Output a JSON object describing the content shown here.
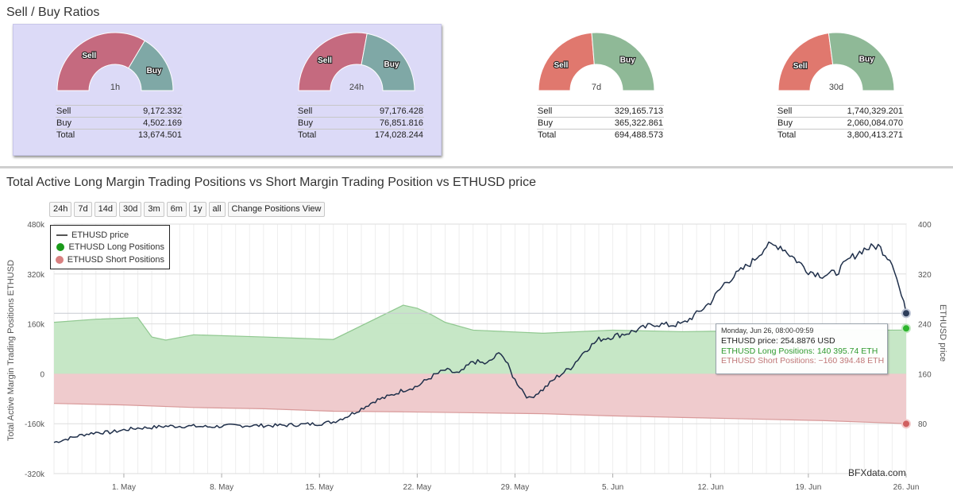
{
  "ratios": {
    "title": "Sell / Buy Ratios",
    "sell_label": "Sell",
    "buy_label": "Buy",
    "colors": {
      "sell_main": "#c56a7f",
      "buy_main": "#7fa8a6",
      "sell_alt": "#e0786e",
      "buy_alt": "#8fb997"
    },
    "gauges": [
      {
        "period": "1h",
        "sell_share": 0.671,
        "rows": [
          {
            "label": "Sell",
            "value": "9,172.332"
          },
          {
            "label": "Buy",
            "value": "4,502.169"
          },
          {
            "label": "Total",
            "value": "13,674.501"
          }
        ]
      },
      {
        "period": "24h",
        "sell_share": 0.558,
        "rows": [
          {
            "label": "Sell",
            "value": "97,176.428"
          },
          {
            "label": "Buy",
            "value": "76,851.816"
          },
          {
            "label": "Total",
            "value": "174,028.244"
          }
        ]
      },
      {
        "period": "7d",
        "sell_share": 0.474,
        "rows": [
          {
            "label": "Sell",
            "value": "329,165.713"
          },
          {
            "label": "Buy",
            "value": "365,322.861"
          },
          {
            "label": "Total",
            "value": "694,488.573"
          }
        ]
      },
      {
        "period": "30d",
        "sell_share": 0.458,
        "rows": [
          {
            "label": "Sell",
            "value": "1,740,329.201"
          },
          {
            "label": "Buy",
            "value": "2,060,084.070"
          },
          {
            "label": "Total",
            "value": "3,800,413.271"
          }
        ]
      }
    ]
  },
  "chart": {
    "title": "Total Active Long Margin Trading Positions vs Short Margin Trading Position vs ETHUSD price",
    "range_buttons": [
      "24h",
      "7d",
      "14d",
      "30d",
      "3m",
      "6m",
      "1y",
      "all",
      "Change Positions View"
    ],
    "credit": "BFXdata.com"
  },
  "tooltip": {
    "header": "Monday, Jun 26, 08:00-09:59",
    "price_label": "ETHUSD price:",
    "price_value": "254.8876 USD",
    "long_label": "ETHUSD Long Positions:",
    "long_value": "140 395.74 ETH",
    "short_label": "ETHUSD Short Positions:",
    "short_value": "−160 394.48 ETH"
  },
  "chart_data": {
    "type": "line",
    "title": "Total Active Long Margin Trading Positions vs Short Margin Trading Position vs ETHUSD price",
    "x_labels": [
      "1. May",
      "8. May",
      "15. May",
      "22. May",
      "29. May",
      "5. Jun",
      "12. Jun",
      "19. Jun",
      "26. Jun"
    ],
    "x_range": [
      "Apr 26",
      "Jun 26"
    ],
    "left_axis": {
      "label": "Total Active Margin Trading Positions ETHUSD",
      "ticks": [
        "480k",
        "320k",
        "160k",
        "0",
        "-160k",
        "-320k"
      ],
      "range": [
        -320000,
        480000
      ]
    },
    "right_axis": {
      "label": "ETHUSD price",
      "ticks": [
        "400",
        "320",
        "240",
        "160",
        "80"
      ],
      "range": [
        0,
        400
      ]
    },
    "legend_position": "top-left",
    "grid": true,
    "colors": {
      "price": "#1f2f4a",
      "long_fill": "#c3e6c3",
      "long_line": "#90c890",
      "short_fill": "#eec8ca",
      "short_line": "#d89999",
      "long_marker": "#2db52d",
      "short_marker": "#d06060"
    },
    "series": [
      {
        "name": "ETHUSD price",
        "axis": "right",
        "x": [
          0,
          1,
          2,
          3,
          4,
          5,
          6,
          7,
          8,
          9,
          10,
          11,
          12,
          13,
          14,
          15,
          16,
          17,
          18,
          19,
          20,
          21,
          22,
          23,
          24,
          25,
          26,
          27,
          28,
          29,
          30,
          31,
          32,
          33,
          34,
          35,
          36,
          37,
          38,
          39,
          40,
          41,
          42,
          43,
          44,
          45,
          46,
          47,
          48,
          49,
          50,
          51,
          52,
          53,
          54,
          55,
          56,
          57,
          58,
          59,
          60,
          61
        ],
        "values": [
          50,
          56,
          62,
          66,
          66,
          70,
          73,
          74,
          76,
          76,
          76,
          75,
          76,
          77,
          77,
          77,
          77,
          78,
          79,
          80,
          83,
          92,
          104,
          117,
          124,
          134,
          140,
          155,
          166,
          160,
          180,
          176,
          195,
          150,
          120,
          135,
          155,
          170,
          197,
          215,
          220,
          225,
          232,
          240,
          238,
          240,
          256,
          275,
          305,
          322,
          340,
          365,
          365,
          345,
          325,
          318,
          322,
          345,
          360,
          365,
          340,
          257
        ],
        "scale_note": "price in USD"
      },
      {
        "name": "ETHUSD Long Positions",
        "axis": "left",
        "x": [
          0,
          3,
          6,
          7,
          8,
          10,
          15,
          20,
          25,
          26,
          27,
          28,
          30,
          35,
          40,
          45,
          50,
          55,
          60,
          61
        ],
        "values": [
          165000,
          175000,
          180000,
          118000,
          108000,
          125000,
          118000,
          110000,
          220000,
          210000,
          190000,
          165000,
          140000,
          130000,
          140000,
          135000,
          138000,
          142000,
          140000,
          140396
        ]
      },
      {
        "name": "ETHUSD Short Positions",
        "axis": "left",
        "x": [
          0,
          5,
          10,
          15,
          20,
          25,
          30,
          35,
          40,
          45,
          50,
          55,
          60,
          61
        ],
        "values": [
          -95000,
          -100000,
          -108000,
          -112000,
          -120000,
          -122000,
          -125000,
          -128000,
          -135000,
          -140000,
          -145000,
          -150000,
          -158000,
          -160394
        ]
      }
    ]
  }
}
